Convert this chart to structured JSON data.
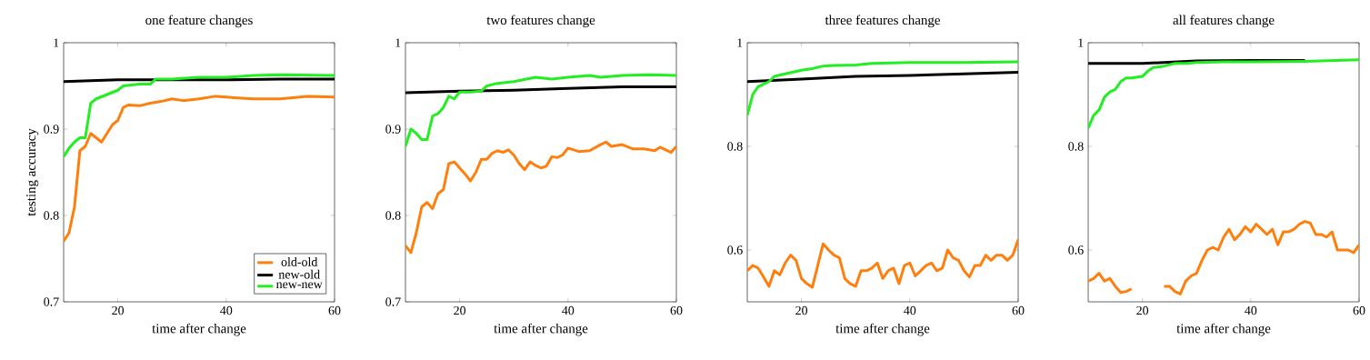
{
  "chart_data": [
    {
      "type": "line",
      "title": "one feature changes",
      "xlabel": "time after change",
      "ylabel": "testing accuracy",
      "xlim": [
        10,
        60
      ],
      "ylim": [
        0.7,
        1
      ],
      "xticks": [
        20,
        40,
        60
      ],
      "yticks": [
        0.7,
        0.8,
        0.9,
        1
      ],
      "legend": "bottom right",
      "series": [
        {
          "name": "old-old",
          "color": "#ff7f0e",
          "x": [
            10,
            11,
            12,
            13,
            14,
            15,
            16,
            17,
            18,
            19,
            20,
            21,
            22,
            24,
            26,
            28,
            30,
            32,
            35,
            38,
            40,
            45,
            50,
            55,
            60
          ],
          "values": [
            0.77,
            0.78,
            0.81,
            0.875,
            0.88,
            0.895,
            0.89,
            0.885,
            0.895,
            0.905,
            0.91,
            0.925,
            0.928,
            0.927,
            0.93,
            0.932,
            0.935,
            0.933,
            0.935,
            0.938,
            0.937,
            0.935,
            0.935,
            0.938,
            0.937
          ]
        },
        {
          "name": "new-old",
          "color": "#000000",
          "x": [
            10,
            20,
            30,
            40,
            50,
            60
          ],
          "values": [
            0.955,
            0.957,
            0.957,
            0.957,
            0.958,
            0.958
          ]
        },
        {
          "name": "new-new",
          "color": "#22ee22",
          "x": [
            10,
            11,
            12,
            13,
            14,
            15,
            16,
            18,
            20,
            21,
            24,
            26,
            27,
            30,
            35,
            40,
            45,
            50,
            60
          ],
          "values": [
            0.868,
            0.878,
            0.885,
            0.89,
            0.89,
            0.93,
            0.935,
            0.94,
            0.945,
            0.95,
            0.952,
            0.952,
            0.958,
            0.958,
            0.96,
            0.96,
            0.962,
            0.963,
            0.962
          ]
        }
      ]
    },
    {
      "type": "line",
      "title": "two features change",
      "xlabel": "time after change",
      "xlim": [
        10,
        60
      ],
      "ylim": [
        0.7,
        1
      ],
      "xticks": [
        20,
        40,
        60
      ],
      "yticks": [
        0.7,
        0.8,
        0.9,
        1
      ],
      "series": [
        {
          "color": "#ff7f0e",
          "x": [
            10,
            11,
            12,
            13,
            14,
            15,
            16,
            17,
            18,
            19,
            20,
            21,
            22,
            23,
            24,
            25,
            26,
            27,
            28,
            29,
            30,
            31,
            32,
            33,
            34,
            35,
            36,
            37,
            38,
            39,
            40,
            42,
            44,
            46,
            47,
            48,
            50,
            52,
            54,
            56,
            57,
            59,
            60
          ],
          "values": [
            0.765,
            0.757,
            0.78,
            0.81,
            0.815,
            0.808,
            0.825,
            0.83,
            0.86,
            0.862,
            0.855,
            0.848,
            0.84,
            0.85,
            0.865,
            0.865,
            0.872,
            0.875,
            0.873,
            0.876,
            0.87,
            0.86,
            0.853,
            0.862,
            0.858,
            0.855,
            0.857,
            0.868,
            0.867,
            0.87,
            0.878,
            0.874,
            0.875,
            0.882,
            0.885,
            0.88,
            0.882,
            0.877,
            0.877,
            0.875,
            0.879,
            0.873,
            0.88
          ]
        },
        {
          "color": "#000000",
          "x": [
            10,
            20,
            30,
            40,
            50,
            60
          ],
          "values": [
            0.942,
            0.944,
            0.945,
            0.947,
            0.949,
            0.949
          ]
        },
        {
          "color": "#22ee22",
          "x": [
            10,
            11,
            12,
            13,
            14,
            15,
            16,
            17,
            18,
            19,
            20,
            22,
            24,
            25,
            27,
            30,
            34,
            37,
            40,
            44,
            46,
            50,
            55,
            60
          ],
          "values": [
            0.88,
            0.9,
            0.895,
            0.888,
            0.888,
            0.915,
            0.918,
            0.925,
            0.938,
            0.935,
            0.943,
            0.943,
            0.944,
            0.95,
            0.953,
            0.955,
            0.96,
            0.958,
            0.96,
            0.962,
            0.96,
            0.962,
            0.963,
            0.962
          ]
        }
      ]
    },
    {
      "type": "line",
      "title": "three features change",
      "xlabel": "time after change",
      "xlim": [
        10,
        60
      ],
      "ylim": [
        0.5,
        1
      ],
      "xticks": [
        20,
        40,
        60
      ],
      "yticks": [
        0.6,
        0.8,
        1
      ],
      "series": [
        {
          "color": "#ff7f0e",
          "x": [
            10,
            11,
            12,
            13,
            14,
            15,
            16,
            17,
            18,
            19,
            20,
            21,
            22,
            23,
            24,
            25,
            26,
            27,
            28,
            29,
            30,
            31,
            32,
            33,
            34,
            35,
            36,
            37,
            38,
            39,
            40,
            41,
            42,
            43,
            44,
            45,
            46,
            47,
            48,
            49,
            50,
            51,
            52,
            53,
            54,
            55,
            56,
            57,
            58,
            59,
            60
          ],
          "values": [
            0.56,
            0.57,
            0.565,
            0.548,
            0.53,
            0.56,
            0.552,
            0.575,
            0.59,
            0.58,
            0.545,
            0.535,
            0.528,
            0.57,
            0.612,
            0.6,
            0.59,
            0.585,
            0.545,
            0.535,
            0.53,
            0.56,
            0.56,
            0.565,
            0.575,
            0.545,
            0.56,
            0.565,
            0.535,
            0.57,
            0.575,
            0.55,
            0.56,
            0.57,
            0.575,
            0.56,
            0.565,
            0.6,
            0.585,
            0.58,
            0.56,
            0.548,
            0.57,
            0.57,
            0.59,
            0.58,
            0.59,
            0.59,
            0.58,
            0.59,
            0.62
          ]
        },
        {
          "color": "#000000",
          "x": [
            10,
            20,
            30,
            40,
            50,
            60
          ],
          "values": [
            0.925,
            0.93,
            0.935,
            0.937,
            0.94,
            0.943
          ]
        },
        {
          "color": "#22ee22",
          "x": [
            10,
            11,
            12,
            13,
            14,
            15,
            17,
            20,
            22,
            24,
            26,
            30,
            33,
            40,
            50,
            60
          ],
          "values": [
            0.86,
            0.9,
            0.915,
            0.92,
            0.925,
            0.935,
            0.94,
            0.947,
            0.95,
            0.955,
            0.956,
            0.957,
            0.96,
            0.962,
            0.962,
            0.963
          ]
        }
      ]
    },
    {
      "type": "line",
      "title": "all features change",
      "xlabel": "time after change",
      "xlim": [
        10,
        60
      ],
      "ylim": [
        0.5,
        1
      ],
      "xticks": [
        20,
        40,
        60
      ],
      "yticks": [
        0.6,
        0.8,
        1
      ],
      "series": [
        {
          "color": "#ff7f0e",
          "x": [
            10,
            11,
            12,
            13,
            14,
            15,
            16,
            17,
            18,
            19,
            20,
            21,
            22,
            23,
            24,
            25,
            26,
            27,
            28,
            29,
            30,
            31,
            32,
            33,
            34,
            35,
            36,
            37,
            38,
            39,
            40,
            41,
            42,
            43,
            44,
            45,
            46,
            47,
            48,
            49,
            50,
            51,
            52,
            53,
            54,
            55,
            56,
            58,
            59,
            60
          ],
          "values": [
            0.54,
            0.545,
            0.555,
            0.54,
            0.545,
            0.53,
            0.518,
            0.52,
            0.525,
            null,
            null,
            null,
            null,
            null,
            0.53,
            0.53,
            0.52,
            0.515,
            0.54,
            0.55,
            0.555,
            0.58,
            0.6,
            0.605,
            0.6,
            0.625,
            0.64,
            0.62,
            0.63,
            0.645,
            0.635,
            0.65,
            0.64,
            0.63,
            0.64,
            0.61,
            0.635,
            0.635,
            0.64,
            0.65,
            0.655,
            0.652,
            0.63,
            0.63,
            0.625,
            0.635,
            0.6,
            0.6,
            0.595,
            0.61
          ]
        },
        {
          "color": "#000000",
          "x": [
            10,
            20,
            30,
            40,
            50
          ],
          "values": [
            0.96,
            0.96,
            0.965,
            0.966,
            0.966
          ]
        },
        {
          "color": "#22ee22",
          "x": [
            10,
            11,
            12,
            13,
            14,
            15,
            16,
            17,
            18,
            20,
            21,
            22,
            24,
            26,
            28,
            30,
            35,
            40,
            50,
            60
          ],
          "values": [
            0.835,
            0.86,
            0.87,
            0.895,
            0.905,
            0.91,
            0.925,
            0.932,
            0.932,
            0.935,
            0.945,
            0.952,
            0.955,
            0.96,
            0.96,
            0.962,
            0.963,
            0.963,
            0.964,
            0.967
          ]
        }
      ]
    }
  ]
}
